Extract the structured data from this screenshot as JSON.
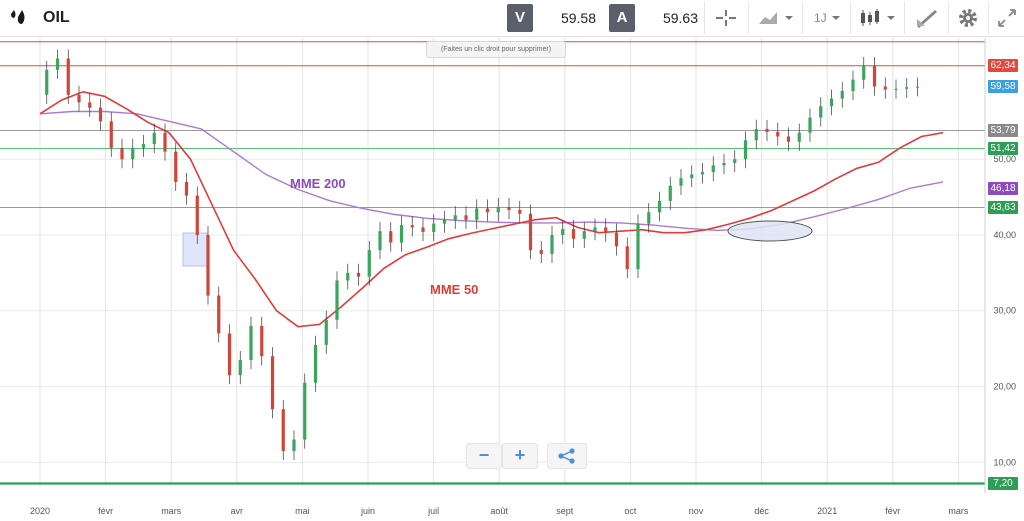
{
  "header": {
    "symbol": "OIL",
    "sell_label": "V",
    "sell_price": "59.58",
    "buy_label": "A",
    "buy_price": "59.63",
    "timeframe": "1J"
  },
  "tooltip": "(Faites un clic droit pour supprimer)",
  "chart_data": {
    "type": "line",
    "ylim": [
      7,
      66
    ],
    "yticks": [
      "10,00",
      "20,00",
      "30,00",
      "40,00",
      "50,00"
    ],
    "xticks": [
      "2020",
      "févr",
      "mars",
      "avr",
      "mai",
      "juin",
      "juil",
      "août",
      "sept",
      "oct",
      "nov",
      "déc",
      "2021",
      "févr",
      "mars"
    ],
    "price_levels": [
      {
        "label": "62,34",
        "value": 62.34,
        "color": "#e04a3f"
      },
      {
        "label": "59,58",
        "value": 59.58,
        "color": "#3aa0e0"
      },
      {
        "label": "53,79",
        "value": 53.79,
        "color": "#8a8a8a"
      },
      {
        "label": "51,42",
        "value": 51.42,
        "color": "#2e9e57"
      },
      {
        "label": "46,18",
        "value": 46.18,
        "color": "#8b4bbf"
      },
      {
        "label": "43,63",
        "value": 43.63,
        "color": "#2e9e57"
      },
      {
        "label": "7,20",
        "value": 7.2,
        "color": "#2e9e57"
      }
    ],
    "horizontal_lines": [
      {
        "value": 65.5,
        "color": "#e04a3f"
      },
      {
        "value": 62.34,
        "color": "#e04a3f"
      },
      {
        "value": 53.79,
        "color": "#9a9a9a"
      },
      {
        "value": 51.42,
        "color": "#5cbf7a"
      },
      {
        "value": 43.63,
        "color": "#5cbf7a"
      },
      {
        "value": 7.2,
        "color": "#2e9e57"
      }
    ],
    "series": [
      {
        "name": "MME 200",
        "color": "#a87bd0",
        "x": [
          0,
          15,
          30,
          45,
          60,
          75,
          90,
          105,
          120,
          135,
          150,
          165,
          180,
          195,
          210,
          225,
          240,
          255,
          270,
          285,
          300,
          315,
          330,
          345,
          360,
          375,
          390,
          405,
          420
        ],
        "y": [
          56,
          56.3,
          56.3,
          56,
          55,
          54,
          51,
          48,
          46,
          44.5,
          43.5,
          42.7,
          42.2,
          41.9,
          41.7,
          41.6,
          41.6,
          41.7,
          41.6,
          41.3,
          40.9,
          40.6,
          40.8,
          41.4,
          42.4,
          43.5,
          44.7,
          46.2,
          47
        ]
      },
      {
        "name": "MME 50",
        "color": "#e03c3c",
        "x": [
          0,
          10,
          20,
          30,
          40,
          50,
          60,
          70,
          80,
          90,
          100,
          110,
          120,
          130,
          140,
          150,
          160,
          170,
          180,
          190,
          200,
          210,
          220,
          230,
          240,
          250,
          260,
          270,
          280,
          290,
          300,
          310,
          320,
          330,
          340,
          350,
          360,
          370,
          380,
          390,
          400,
          410,
          420
        ],
        "y": [
          56,
          57.8,
          58.9,
          58.3,
          56.7,
          54.9,
          53.5,
          50,
          44,
          38,
          34.2,
          30,
          27.9,
          28.2,
          30.5,
          33,
          35.6,
          37.4,
          38.4,
          39.5,
          40.2,
          40.8,
          41.4,
          42,
          42.3,
          41,
          40.3,
          40.5,
          40.7,
          40.3,
          40.3,
          40.7,
          41.4,
          42.2,
          43.2,
          44.5,
          45.8,
          47.4,
          48.8,
          49.6,
          51.5,
          53,
          53.5
        ]
      },
      {
        "name": "Price",
        "color": "#2e9e57",
        "x": [
          0,
          5,
          10,
          15,
          20,
          25,
          30,
          35,
          40,
          45,
          50,
          55,
          60,
          65,
          70,
          75,
          80,
          85,
          90,
          95,
          100,
          105,
          110,
          115,
          120,
          125,
          130,
          135,
          140,
          145,
          150,
          155,
          160,
          165,
          170,
          175,
          180,
          185,
          190,
          195,
          200,
          205,
          210,
          215,
          220,
          225,
          230,
          235,
          240,
          245,
          250,
          255,
          260,
          265,
          270,
          275,
          280,
          285,
          290,
          295,
          300,
          305,
          310,
          315,
          320,
          325,
          330,
          335,
          340,
          345,
          350,
          355,
          360,
          365,
          370,
          375,
          380,
          385,
          390,
          395,
          400,
          405,
          410
        ],
        "y": [
          58.5,
          61.8,
          63.3,
          58.5,
          57.5,
          56.8,
          55,
          51.5,
          50,
          51.5,
          52,
          53.5,
          51,
          47,
          45.2,
          40,
          32,
          27,
          21.5,
          23.5,
          28,
          24,
          17,
          11.5,
          13,
          20.5,
          25.5,
          28.8,
          34,
          35,
          34.5,
          38,
          40.5,
          39,
          41.3,
          41,
          40.4,
          41.5,
          42,
          42.6,
          42,
          43.5,
          43,
          43.7,
          43.3,
          42.8,
          38,
          37.5,
          40,
          40.8,
          39.5,
          40.5,
          41,
          40.3,
          38.5,
          35.5,
          41.5,
          43,
          44.5,
          46.5,
          47.5,
          48,
          48.3,
          49.2,
          49.5,
          50,
          52.5,
          54,
          53.6,
          53,
          52.3,
          53.5,
          55.5,
          57,
          58,
          59,
          60.5,
          62.3,
          59.6,
          59.2,
          59.3,
          59.5,
          59.58
        ]
      }
    ],
    "annotations": [
      {
        "text": "MME 200",
        "color": "#8b4bbf"
      },
      {
        "text": "MME 50",
        "color": "#e03c3c"
      }
    ]
  },
  "controls": {
    "zoom_out": "−",
    "zoom_in": "+"
  }
}
